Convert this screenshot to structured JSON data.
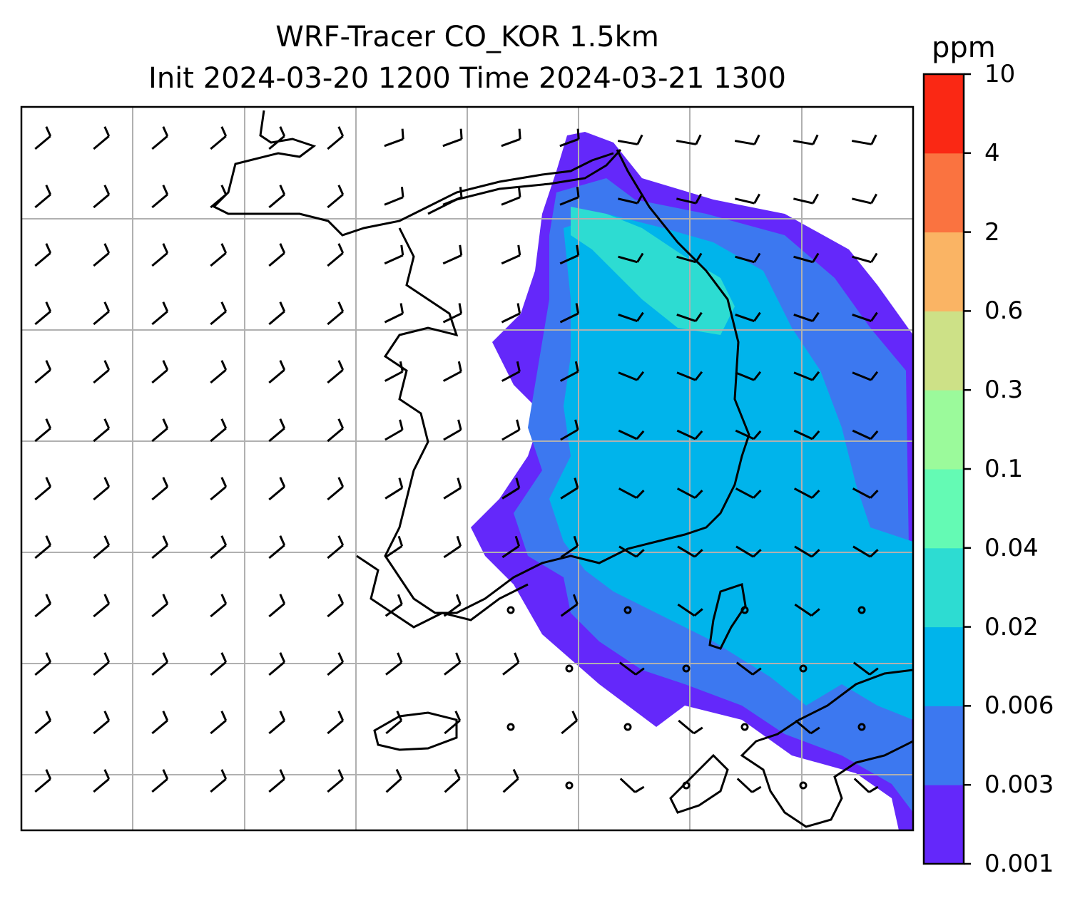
{
  "title": {
    "line1": "WRF-Tracer CO_KOR 1.5km",
    "line2": "Init 2024-03-20 1200 Time 2024-03-21 1300"
  },
  "colorbar": {
    "unit": "ppm",
    "levels": [
      "0.001",
      "0.003",
      "0.006",
      "0.02",
      "0.04",
      "0.1",
      "0.3",
      "0.6",
      "2",
      "4",
      "10"
    ],
    "colors": [
      "#6428fa",
      "#3c78f0",
      "#00b4eb",
      "#2ddcd2",
      "#64fab4",
      "#9bfa9b",
      "#cde187",
      "#fab464",
      "#fa7340",
      "#fa2814"
    ]
  },
  "map": {
    "gridlines": "on",
    "grid_color": "#b0b0b0",
    "coastline_color": "#000000",
    "overlay": "wind barbs"
  }
}
